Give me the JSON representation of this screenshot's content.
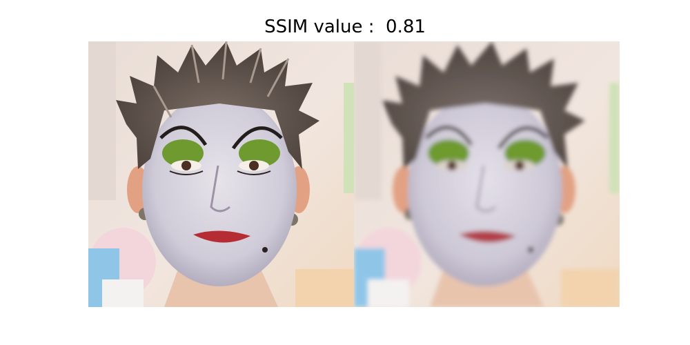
{
  "figure": {
    "title": "SSIM value :  0.81",
    "images": [
      {
        "role": "original-portrait",
        "description_icon": "face-photo-icon"
      },
      {
        "role": "degraded-portrait",
        "description_icon": "face-photo-blurred-icon"
      }
    ]
  }
}
